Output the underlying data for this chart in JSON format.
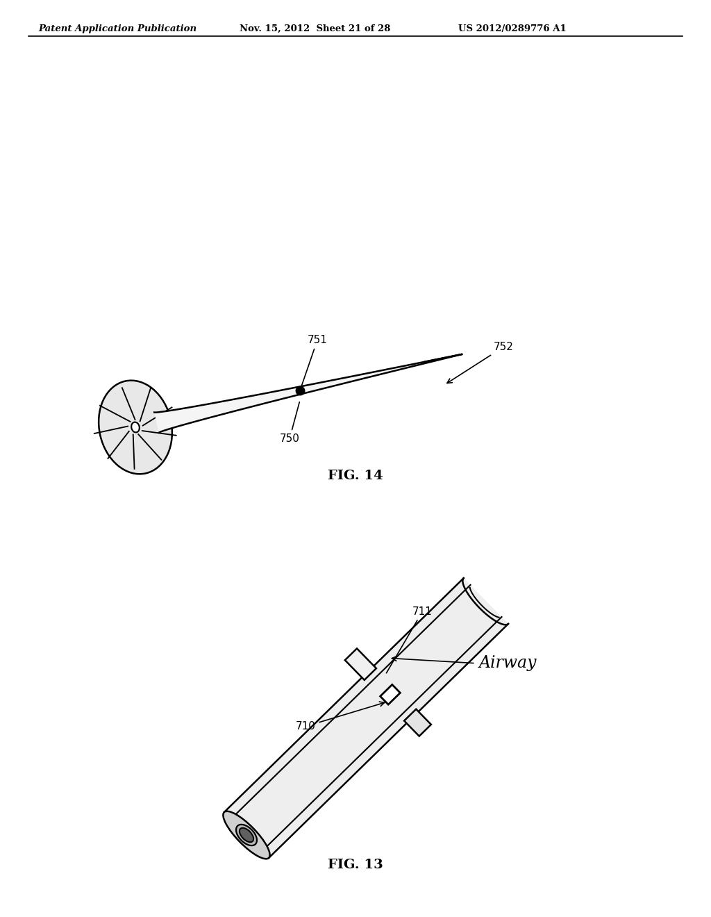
{
  "bg_color": "#ffffff",
  "header_left": "Patent Application Publication",
  "header_mid": "Nov. 15, 2012  Sheet 21 of 28",
  "header_right": "US 2012/0289776 A1",
  "fig13_caption": "FIG. 13",
  "fig14_caption": "FIG. 14",
  "label_710": "710",
  "label_711": "711",
  "label_airway": "Airway",
  "label_750": "750",
  "label_751": "751",
  "label_752": "752",
  "line_color": "#000000",
  "line_width": 1.8
}
